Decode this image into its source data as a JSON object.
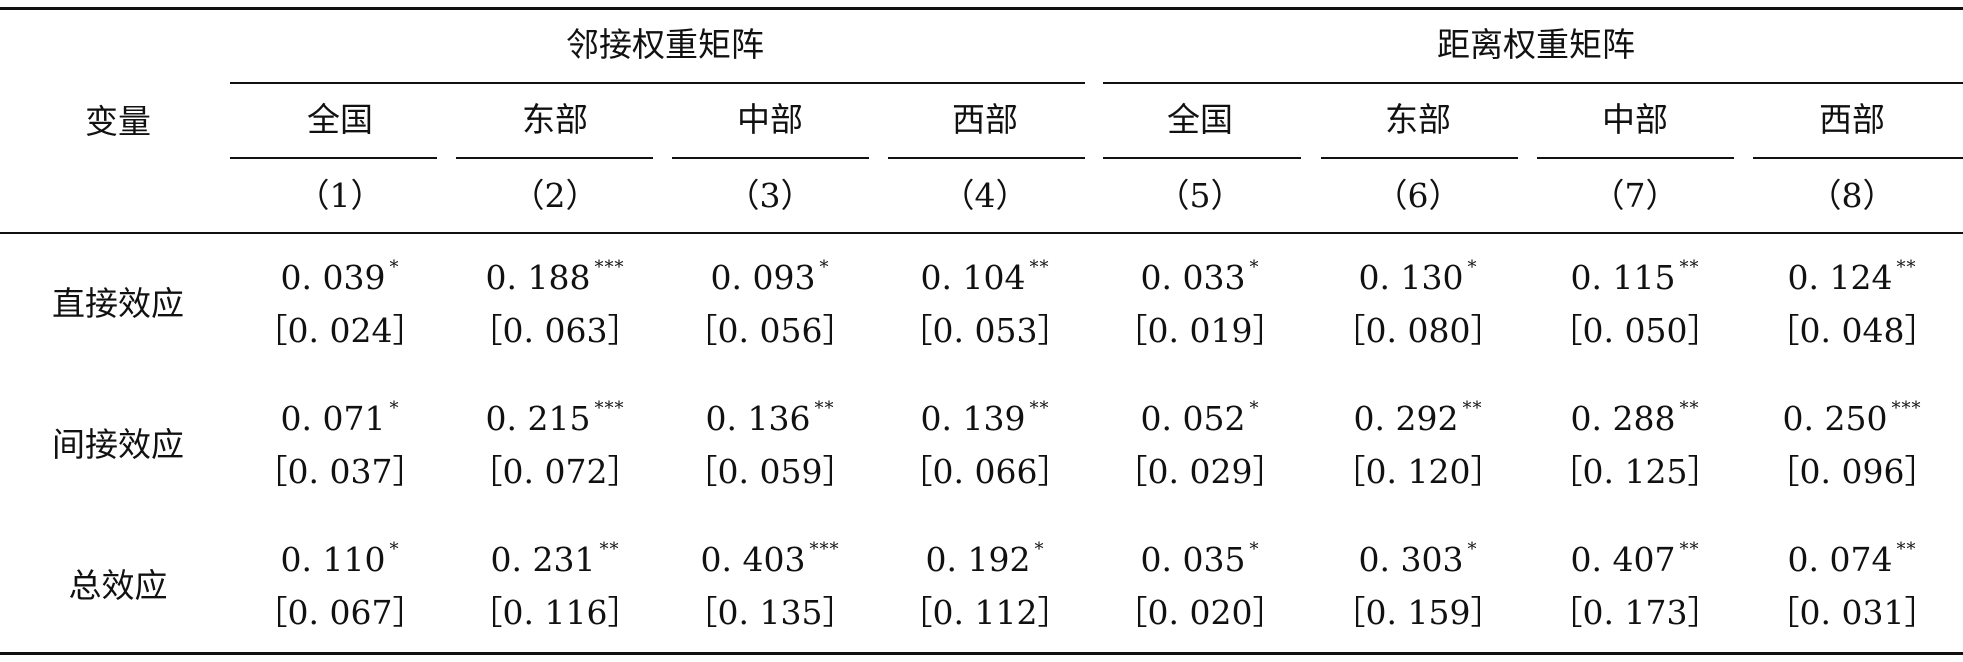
{
  "table": {
    "row_header_label": "变量",
    "groups": [
      {
        "label": "邻接权重矩阵"
      },
      {
        "label": "距离权重矩阵"
      }
    ],
    "columns": [
      {
        "region": "全国",
        "index": "（1）"
      },
      {
        "region": "东部",
        "index": "（2）"
      },
      {
        "region": "中部",
        "index": "（3）"
      },
      {
        "region": "西部",
        "index": "（4）"
      },
      {
        "region": "全国",
        "index": "（5）"
      },
      {
        "region": "东部",
        "index": "（6）"
      },
      {
        "region": "中部",
        "index": "（7）"
      },
      {
        "region": "西部",
        "index": "（8）"
      }
    ],
    "rows": [
      {
        "label": "直接效应",
        "cells": [
          {
            "value": "0. 039",
            "stars": "*",
            "se": "［0. 024］"
          },
          {
            "value": "0. 188",
            "stars": "***",
            "se": "［0. 063］"
          },
          {
            "value": "0. 093",
            "stars": "*",
            "se": "［0. 056］"
          },
          {
            "value": "0. 104",
            "stars": "**",
            "se": "［0. 053］"
          },
          {
            "value": "0. 033",
            "stars": "*",
            "se": "［0. 019］"
          },
          {
            "value": "0. 130",
            "stars": "*",
            "se": "［0. 080］"
          },
          {
            "value": "0. 115",
            "stars": "**",
            "se": "［0. 050］"
          },
          {
            "value": "0. 124",
            "stars": "**",
            "se": "［0. 048］"
          }
        ]
      },
      {
        "label": "间接效应",
        "cells": [
          {
            "value": "0. 071",
            "stars": "*",
            "se": "［0. 037］"
          },
          {
            "value": "0. 215",
            "stars": "***",
            "se": "［0. 072］"
          },
          {
            "value": "0. 136",
            "stars": "**",
            "se": "［0. 059］"
          },
          {
            "value": "0. 139",
            "stars": "**",
            "se": "［0. 066］"
          },
          {
            "value": "0. 052",
            "stars": "*",
            "se": "［0. 029］"
          },
          {
            "value": "0. 292",
            "stars": "**",
            "se": "［0. 120］"
          },
          {
            "value": "0. 288",
            "stars": "**",
            "se": "［0. 125］"
          },
          {
            "value": "0. 250",
            "stars": "***",
            "se": "［0. 096］"
          }
        ]
      },
      {
        "label": "总效应",
        "cells": [
          {
            "value": "0. 110",
            "stars": "*",
            "se": "［0. 067］"
          },
          {
            "value": "0. 231",
            "stars": "**",
            "se": "［0. 116］"
          },
          {
            "value": "0. 403",
            "stars": "***",
            "se": "［0. 135］"
          },
          {
            "value": "0. 192",
            "stars": "*",
            "se": "［0. 112］"
          },
          {
            "value": "0. 035",
            "stars": "*",
            "se": "［0. 020］"
          },
          {
            "value": "0. 303",
            "stars": "*",
            "se": "［0. 159］"
          },
          {
            "value": "0. 407",
            "stars": "**",
            "se": "［0. 173］"
          },
          {
            "value": "0. 074",
            "stars": "**",
            "se": "［0. 031］"
          }
        ]
      }
    ]
  }
}
